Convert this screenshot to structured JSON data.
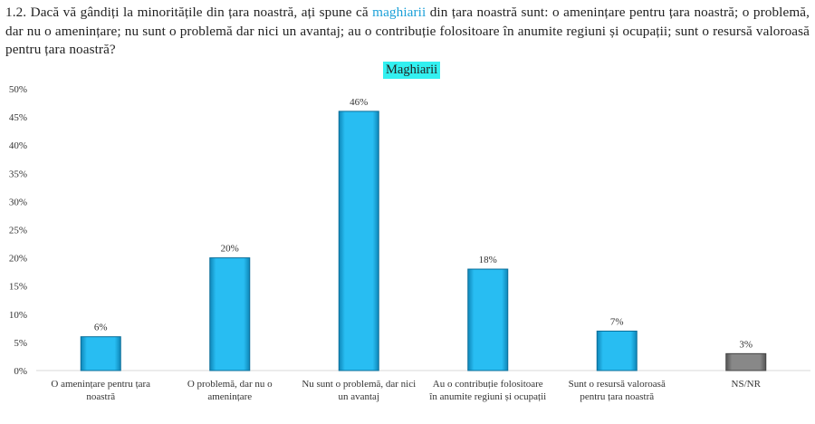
{
  "question": {
    "before": "1.2. Dacă vă gândiți la minoritățile din țara noastră, ați spune că ",
    "highlight": "maghiarii",
    "after": " din țara noastră sunt: o amenințare pentru țara noastră; o problemă, dar nu o amenințare; nu sunt o problemă dar nici un avantaj; au o contribuție folositoare în anumite regiuni și ocupații; sunt o resursă valoroasă pentru țara noastră?"
  },
  "chart_data": {
    "type": "bar",
    "title": "Maghiarii",
    "categories": [
      [
        "O amenințare pentru țara",
        "noastră"
      ],
      [
        "O problemă, dar nu o",
        "amenințare"
      ],
      [
        "Nu sunt o problemă, dar nici",
        "un avantaj"
      ],
      [
        "Au o contribuție folositoare",
        "în anumite regiuni și ocupații"
      ],
      [
        "Sunt o resursă valoroasă",
        "pentru țara noastră"
      ],
      [
        "NS/NR"
      ]
    ],
    "values": [
      6,
      20,
      46,
      18,
      7,
      3
    ],
    "data_labels": [
      "6%",
      "20%",
      "46%",
      "18%",
      "7%",
      "3%"
    ],
    "bar_colors": [
      "#1fb4ec",
      "#1fb4ec",
      "#1fb4ec",
      "#1fb4ec",
      "#1fb4ec",
      "#7f7f7f"
    ],
    "yticks": [
      "0%",
      "5%",
      "10%",
      "15%",
      "20%",
      "25%",
      "30%",
      "35%",
      "40%",
      "45%",
      "50%"
    ],
    "ylim": [
      0,
      50
    ],
    "xlabel": "",
    "ylabel": "",
    "grid": false
  }
}
